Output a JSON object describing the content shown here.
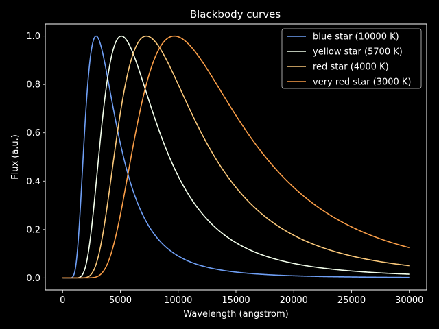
{
  "chart_data": {
    "type": "line",
    "title": "Blackbody curves",
    "xlabel": "Wavelength (angstrom)",
    "ylabel": "Flux (a.u.)",
    "xlim": [
      -1500,
      31500
    ],
    "ylim": [
      -0.05,
      1.05
    ],
    "xticks": [
      0,
      5000,
      10000,
      15000,
      20000,
      25000,
      30000
    ],
    "yticks": [
      0.0,
      0.2,
      0.4,
      0.6,
      0.8,
      1.0
    ],
    "xtick_labels": [
      "0",
      "5000",
      "10000",
      "15000",
      "20000",
      "25000",
      "30000"
    ],
    "ytick_labels": [
      "0.0",
      "0.2",
      "0.4",
      "0.6",
      "0.8",
      "1.0"
    ],
    "legend_position": "top-right",
    "grid": false,
    "series": [
      {
        "name": "blue star (10000 K)",
        "temperature_K": 10000,
        "color": "#6f9ff5"
      },
      {
        "name": "yellow star (5700 K)",
        "temperature_K": 5700,
        "color": "#f3ffec"
      },
      {
        "name": "red star (4000 K)",
        "temperature_K": 4000,
        "color": "#fac87a"
      },
      {
        "name": "very red star (3000 K)",
        "temperature_K": 3000,
        "color": "#fa9e48"
      }
    ]
  }
}
